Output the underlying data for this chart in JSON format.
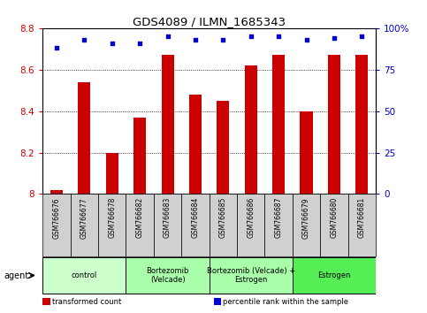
{
  "title": "GDS4089 / ILMN_1685343",
  "samples": [
    "GSM766676",
    "GSM766677",
    "GSM766678",
    "GSM766682",
    "GSM766683",
    "GSM766684",
    "GSM766685",
    "GSM766686",
    "GSM766687",
    "GSM766679",
    "GSM766680",
    "GSM766681"
  ],
  "bar_values": [
    8.02,
    8.54,
    8.2,
    8.37,
    8.67,
    8.48,
    8.45,
    8.62,
    8.67,
    8.4,
    8.67,
    8.67
  ],
  "percentile_values": [
    88,
    93,
    91,
    91,
    95,
    93,
    93,
    95,
    95,
    93,
    94,
    95
  ],
  "bar_color": "#cc0000",
  "dot_color": "#0000cc",
  "ylim_left": [
    8.0,
    8.8
  ],
  "ylim_right": [
    0,
    100
  ],
  "yticks_left": [
    8.0,
    8.2,
    8.4,
    8.6,
    8.8
  ],
  "ytick_labels_left": [
    "8",
    "8.2",
    "8.4",
    "8.6",
    "8.8"
  ],
  "yticks_right": [
    0,
    25,
    50,
    75,
    100
  ],
  "ytick_labels_right": [
    "0",
    "25",
    "50",
    "75",
    "100%"
  ],
  "groups": [
    {
      "label": "control",
      "start": 0,
      "end": 3,
      "color": "#ccffcc"
    },
    {
      "label": "Bortezomib\n(Velcade)",
      "start": 3,
      "end": 6,
      "color": "#aaffaa"
    },
    {
      "label": "Bortezomib (Velcade) +\nEstrogen",
      "start": 6,
      "end": 9,
      "color": "#aaffaa"
    },
    {
      "label": "Estrogen",
      "start": 9,
      "end": 12,
      "color": "#55ee55"
    }
  ],
  "agent_label": "agent",
  "legend_items": [
    {
      "color": "#cc0000",
      "label": "transformed count"
    },
    {
      "color": "#0000cc",
      "label": "percentile rank within the sample"
    }
  ],
  "bar_width": 0.45,
  "background_color": "#ffffff",
  "plot_bg_color": "#ffffff",
  "xticklabel_bg": "#d0d0d0"
}
